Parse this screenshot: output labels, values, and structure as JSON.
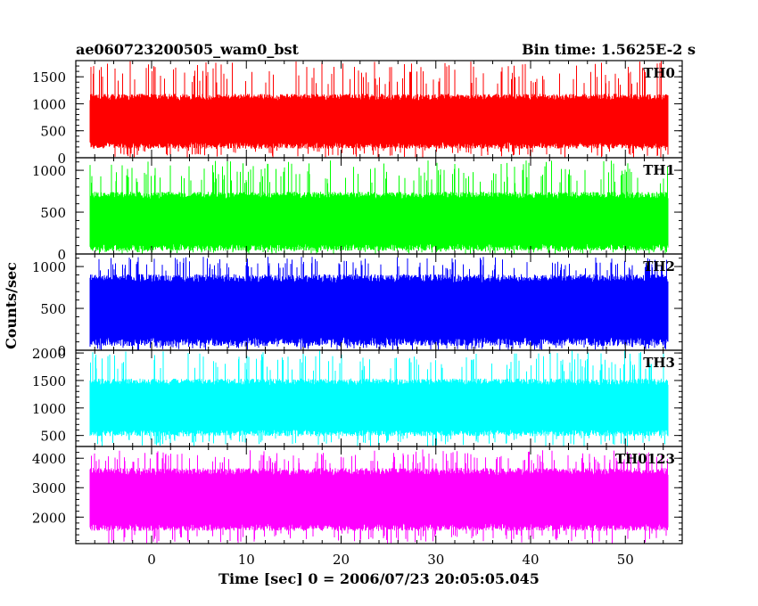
{
  "chart_data": {
    "type": "line",
    "title_left": "ae060723200505_wam0_bst",
    "title_right": "Bin time: 1.5625E-2 s",
    "xlabel": "Time [sec] 0 = 2006/07/23 20:05:05.045",
    "ylabel": "Counts/sec",
    "x_range": [
      -8,
      56
    ],
    "bin_time": 0.015625,
    "x_ticks": [
      0,
      10,
      20,
      30,
      40,
      50
    ],
    "x_tick_labels": [
      "0",
      "10",
      "20",
      "30",
      "40",
      "50"
    ],
    "grid": false,
    "panels": [
      {
        "name": "TH0",
        "color": "#ff0000",
        "ylim": [
          0,
          1800
        ],
        "y_ticks": [
          0,
          500,
          1000,
          1500
        ],
        "y_tick_labels": [
          "0",
          "500",
          "1000",
          "1500"
        ],
        "series_summary": {
          "typical_low": 200,
          "typical_high": 1150,
          "min": 0,
          "max": 1800
        }
      },
      {
        "name": "TH1",
        "color": "#00ff00",
        "ylim": [
          0,
          1150
        ],
        "y_ticks": [
          0,
          500,
          1000
        ],
        "y_tick_labels": [
          "0",
          "500",
          "1000"
        ],
        "series_summary": {
          "typical_low": 60,
          "typical_high": 720,
          "min": 0,
          "max": 1120
        }
      },
      {
        "name": "TH2",
        "color": "#0000ff",
        "ylim": [
          0,
          1150
        ],
        "y_ticks": [
          0,
          500,
          1000
        ],
        "y_tick_labels": [
          "0",
          "500",
          "1000"
        ],
        "series_summary": {
          "typical_low": 80,
          "typical_high": 880,
          "min": 0,
          "max": 1120
        }
      },
      {
        "name": "TH3",
        "color": "#00ffff",
        "ylim": [
          300,
          2050
        ],
        "y_ticks": [
          500,
          1000,
          1500,
          2000
        ],
        "y_tick_labels": [
          "500",
          "1000",
          "1500",
          "2000"
        ],
        "series_summary": {
          "typical_low": 520,
          "typical_high": 1500,
          "min": 300,
          "max": 2050
        }
      },
      {
        "name": "TH0123",
        "color": "#ff00ff",
        "ylim": [
          1100,
          4400
        ],
        "y_ticks": [
          2000,
          3000,
          4000
        ],
        "y_tick_labels": [
          "2000",
          "3000",
          "4000"
        ],
        "series_summary": {
          "typical_low": 1600,
          "typical_high": 3600,
          "min": 1100,
          "max": 4300
        }
      }
    ]
  }
}
